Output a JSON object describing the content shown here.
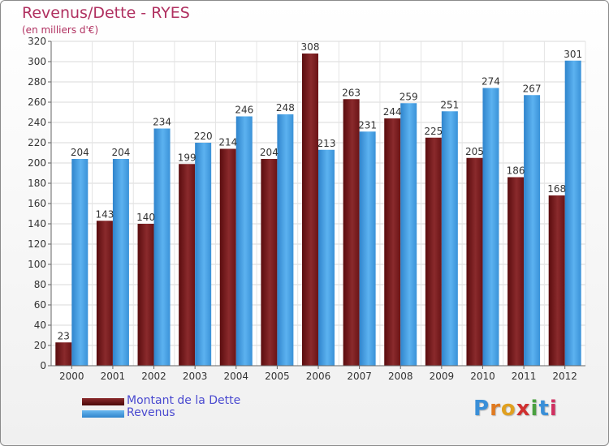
{
  "header": {
    "title": "Revenus/Dette - RYES",
    "subtitle": "(en milliers d'€)"
  },
  "legend": {
    "items": [
      {
        "label": "Montant de la Dette",
        "color": "#6b1010"
      },
      {
        "label": "Revenus",
        "color": "#4a9fe0"
      }
    ]
  },
  "logo": {
    "text": "Proxiti"
  },
  "chart_data": {
    "type": "bar",
    "categories": [
      "2000",
      "2001",
      "2002",
      "2003",
      "2004",
      "2005",
      "2006",
      "2007",
      "2008",
      "2009",
      "2010",
      "2011",
      "2012"
    ],
    "series": [
      {
        "name": "Montant de la Dette",
        "color": "#7a1a1c",
        "values": [
          23,
          143,
          140,
          199,
          214,
          204,
          308,
          263,
          244,
          225,
          205,
          186,
          168
        ]
      },
      {
        "name": "Revenus",
        "color": "#3f9ee3",
        "values": [
          204,
          204,
          234,
          220,
          246,
          248,
          213,
          231,
          259,
          251,
          274,
          267,
          301
        ]
      }
    ],
    "ylim": [
      0,
      320
    ],
    "yticks": [
      0,
      20,
      40,
      60,
      80,
      100,
      120,
      140,
      160,
      180,
      200,
      220,
      240,
      260,
      280,
      300,
      320
    ],
    "grid": true,
    "legend_position": "bottom-left"
  }
}
